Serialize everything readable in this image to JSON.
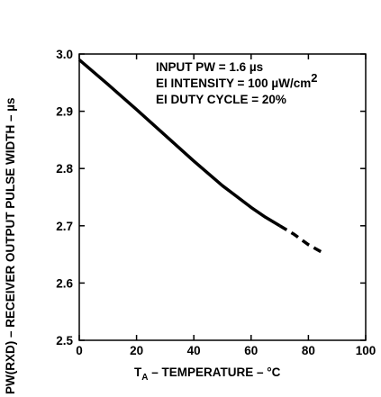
{
  "chart_data": {
    "type": "line",
    "title": "",
    "xlabel": {
      "main": "T",
      "subscript": "A",
      "rest": " – TEMPERATURE – °C"
    },
    "ylabel": "PW(RXD) – RECEIVER OUTPUT PULSE WIDTH – µs",
    "xlim": [
      0,
      100
    ],
    "ylim": [
      2.5,
      3.0
    ],
    "xticks": [
      0,
      20,
      40,
      60,
      80,
      100
    ],
    "yticks": [
      2.5,
      2.6,
      2.7,
      2.8,
      2.9,
      3.0
    ],
    "xtick_labels": [
      "0",
      "20",
      "40",
      "60",
      "80",
      "100"
    ],
    "ytick_labels": [
      "2.5",
      "2.6",
      "2.7",
      "2.8",
      "2.9",
      "3.0"
    ],
    "grid": false,
    "annotations": {
      "line1": "INPUT PW = 1.6 µs",
      "line2": "EI INTENSITY = 100 µW/cm",
      "line2_superscript": "2",
      "line3": "EI DUTY CYCLE = 20%"
    },
    "series": [
      {
        "style": "solid",
        "x": [
          0,
          10,
          20,
          30,
          40,
          50,
          60,
          65,
          70
        ],
        "y": [
          2.99,
          2.947,
          2.903,
          2.858,
          2.813,
          2.77,
          2.732,
          2.715,
          2.7
        ]
      },
      {
        "style": "dashed",
        "x": [
          70,
          75,
          80,
          85
        ],
        "y": [
          2.7,
          2.685,
          2.667,
          2.653
        ]
      }
    ]
  }
}
